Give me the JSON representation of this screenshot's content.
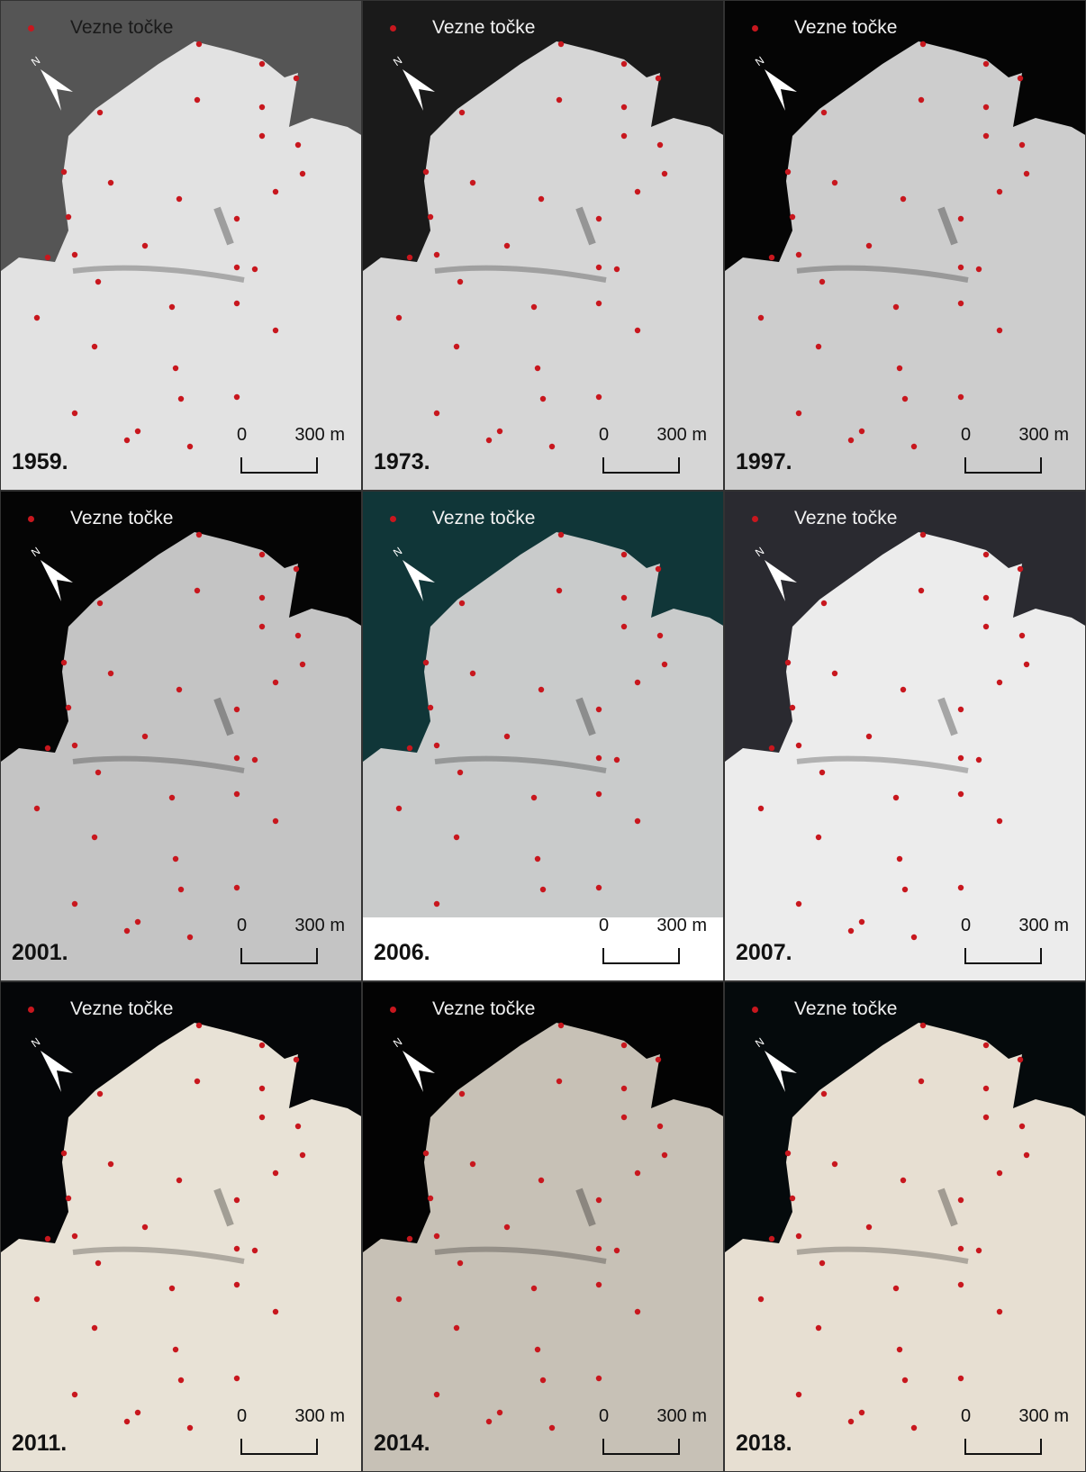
{
  "legend_label": "Vezne točke",
  "scale": {
    "zero": "0",
    "max": "300 m"
  },
  "north_symbol": "N",
  "panels": [
    {
      "year": "1959.",
      "sea": "#555555",
      "land": "#e2e2e2",
      "legend_style": "dark"
    },
    {
      "year": "1973.",
      "sea": "#1a1a1a",
      "land": "#d6d6d6",
      "legend_style": "light"
    },
    {
      "year": "1997.",
      "sea": "#050505",
      "land": "#cdcdcd",
      "legend_style": "light"
    },
    {
      "year": "2001.",
      "sea": "#050505",
      "land": "#c4c4c4",
      "legend_style": "light"
    },
    {
      "year": "2006.",
      "sea": "#103638",
      "land": "#c9cbcb",
      "legend_style": "light"
    },
    {
      "year": "2007.",
      "sea": "#2a2a30",
      "land": "#ececec",
      "legend_style": "light"
    },
    {
      "year": "2011.",
      "sea": "#050608",
      "land": "#e8e2d6",
      "legend_style": "light"
    },
    {
      "year": "2014.",
      "sea": "#030303",
      "land": "#c7c1b6",
      "legend_style": "light"
    },
    {
      "year": "2018.",
      "sea": "#050a0c",
      "land": "#e7dfd2",
      "legend_style": "light"
    }
  ],
  "colors": {
    "tie_point": "#c8171e",
    "north_arrow": "#ffffff"
  },
  "icons": [
    "north-arrow-icon",
    "tie-point-icon",
    "scale-bar-icon"
  ]
}
